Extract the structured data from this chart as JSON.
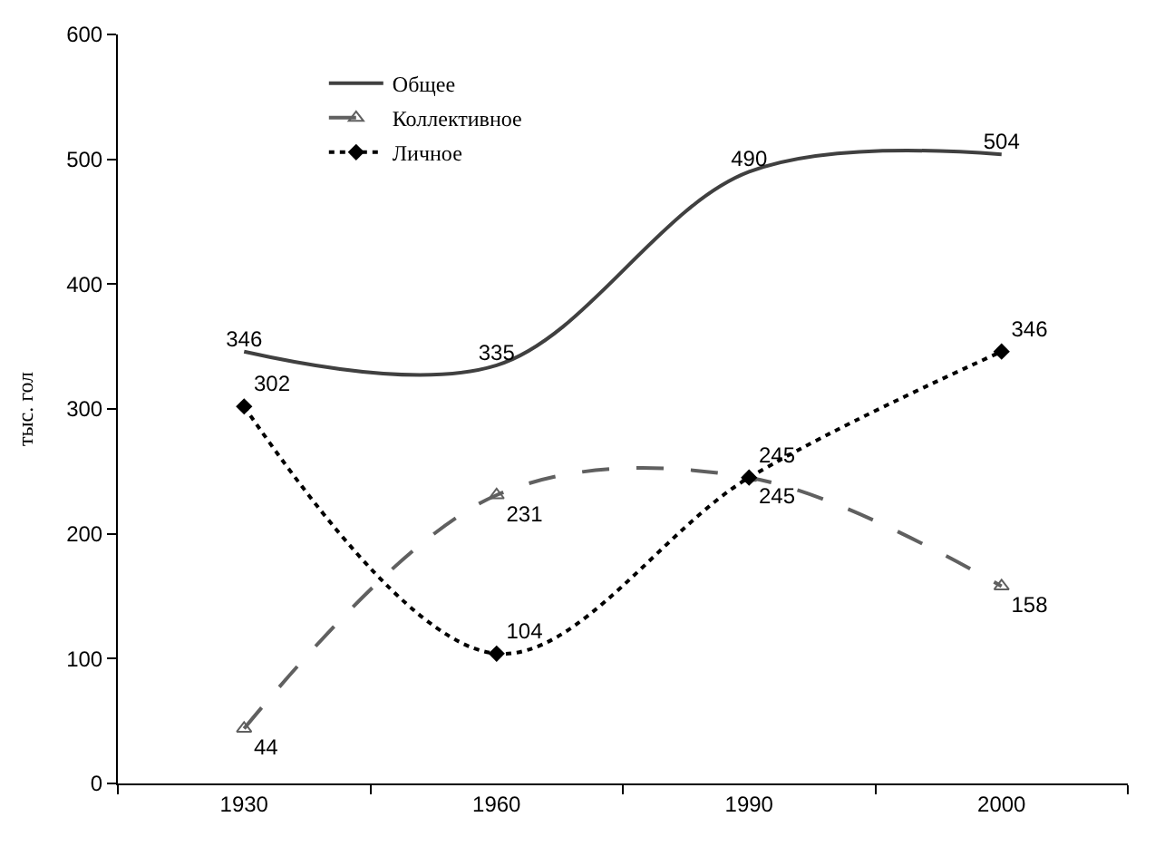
{
  "chart_data": {
    "type": "line",
    "ylabel": "тыс. гол",
    "categories": [
      "1930",
      "1960",
      "1990",
      "2000"
    ],
    "ylim": [
      0,
      600
    ],
    "yticks": [
      0,
      100,
      200,
      300,
      400,
      500,
      600
    ],
    "legend": "top left",
    "data_labels": true,
    "series": [
      {
        "name": "Общее",
        "color": "#404040",
        "values": [
          346,
          335,
          490,
          504
        ],
        "marker": "none",
        "line_style": "solid"
      },
      {
        "name": "Коллективное",
        "color": "#606060",
        "values": [
          44,
          231,
          245,
          158
        ],
        "marker": "triangle",
        "line_style": "dashed"
      },
      {
        "name": "Личное",
        "color": "#000000",
        "values": [
          302,
          104,
          245,
          346
        ],
        "marker": "diamond",
        "line_style": "dotted"
      }
    ]
  }
}
